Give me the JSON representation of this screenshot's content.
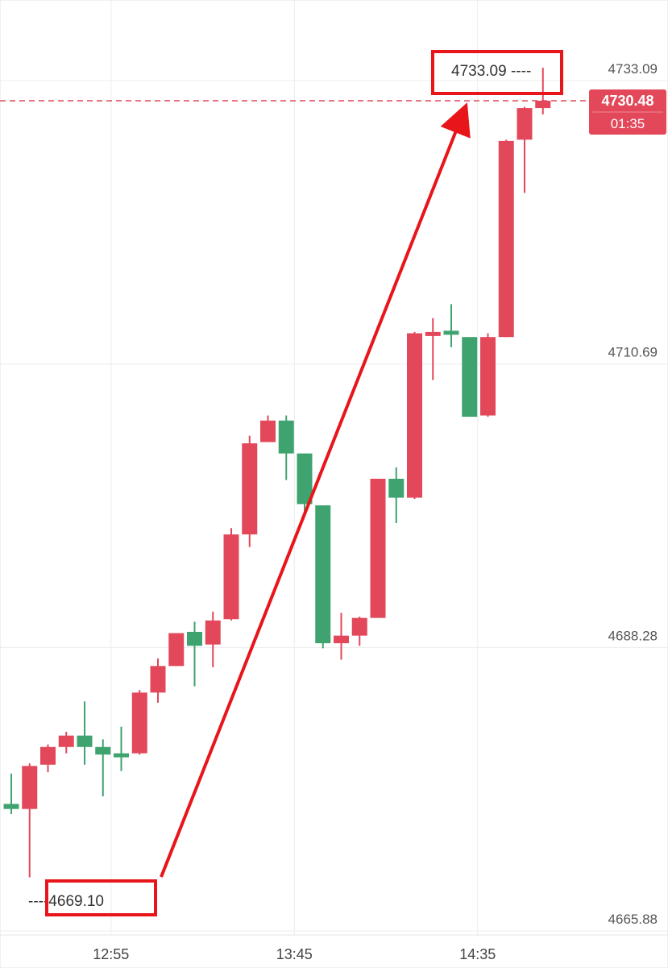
{
  "chart_data": {
    "type": "candlestick",
    "y_ticks": [
      4733.09,
      4710.69,
      4688.28,
      4665.88
    ],
    "y_tick_labels": [
      "4733.09",
      "4710.69",
      "4688.28",
      "4665.88"
    ],
    "ylim": [
      4665.88,
      4733.09
    ],
    "x_tick_labels": [
      {
        "label": "12:55",
        "index": 5
      },
      {
        "label": "13:45",
        "index": 15
      },
      {
        "label": "14:35",
        "index": 25
      }
    ],
    "candles": [
      {
        "o": 4674.9,
        "h": 4677.3,
        "l": 4674.1,
        "c": 4674.5
      },
      {
        "o": 4674.5,
        "h": 4678.1,
        "l": 4669.1,
        "c": 4677.9
      },
      {
        "o": 4678.0,
        "h": 4679.6,
        "l": 4677.4,
        "c": 4679.4
      },
      {
        "o": 4679.4,
        "h": 4680.6,
        "l": 4678.9,
        "c": 4680.3
      },
      {
        "o": 4680.3,
        "h": 4683.0,
        "l": 4678.0,
        "c": 4679.4
      },
      {
        "o": 4679.4,
        "h": 4680.0,
        "l": 4675.5,
        "c": 4678.8
      },
      {
        "o": 4678.9,
        "h": 4681.0,
        "l": 4677.5,
        "c": 4678.6
      },
      {
        "o": 4678.9,
        "h": 4683.9,
        "l": 4678.8,
        "c": 4683.7
      },
      {
        "o": 4683.7,
        "h": 4686.4,
        "l": 4682.9,
        "c": 4685.8
      },
      {
        "o": 4685.8,
        "h": 4688.4,
        "l": 4685.8,
        "c": 4688.4
      },
      {
        "o": 4688.5,
        "h": 4689.3,
        "l": 4684.2,
        "c": 4687.4
      },
      {
        "o": 4687.5,
        "h": 4690.1,
        "l": 4685.7,
        "c": 4689.4
      },
      {
        "o": 4689.5,
        "h": 4696.7,
        "l": 4689.4,
        "c": 4696.2
      },
      {
        "o": 4696.2,
        "h": 4704.0,
        "l": 4695.2,
        "c": 4703.4
      },
      {
        "o": 4703.5,
        "h": 4705.6,
        "l": 4703.5,
        "c": 4705.2
      },
      {
        "o": 4705.2,
        "h": 4705.6,
        "l": 4700.5,
        "c": 4702.6
      },
      {
        "o": 4702.6,
        "h": 4702.6,
        "l": 4698.0,
        "c": 4698.6
      },
      {
        "o": 4698.5,
        "h": 4698.5,
        "l": 4687.2,
        "c": 4687.6
      },
      {
        "o": 4687.6,
        "h": 4690.0,
        "l": 4686.3,
        "c": 4688.2
      },
      {
        "o": 4688.2,
        "h": 4689.7,
        "l": 4687.4,
        "c": 4689.6
      },
      {
        "o": 4689.6,
        "h": 4700.6,
        "l": 4689.6,
        "c": 4700.6
      },
      {
        "o": 4700.6,
        "h": 4701.5,
        "l": 4697.1,
        "c": 4699.1
      },
      {
        "o": 4699.1,
        "h": 4712.2,
        "l": 4699.0,
        "c": 4712.1
      },
      {
        "o": 4712.1,
        "h": 4713.3,
        "l": 4708.4,
        "c": 4712.2
      },
      {
        "o": 4712.3,
        "h": 4714.4,
        "l": 4711.0,
        "c": 4712.2
      },
      {
        "o": 4711.8,
        "h": 4711.8,
        "l": 4705.5,
        "c": 4705.5
      },
      {
        "o": 4705.6,
        "h": 4712.1,
        "l": 4705.5,
        "c": 4711.8
      },
      {
        "o": 4711.8,
        "h": 4727.4,
        "l": 4711.8,
        "c": 4727.3
      },
      {
        "o": 4727.4,
        "h": 4730.0,
        "l": 4723.2,
        "c": 4729.9
      },
      {
        "o": 4729.9,
        "h": 4733.09,
        "l": 4729.4,
        "c": 4730.48
      }
    ],
    "up_color": "#e2485a",
    "down_color": "#3fa36f",
    "current_price": {
      "value": 4730.48,
      "label": "4730.48",
      "timer": "01:35",
      "color": "#e2485a"
    },
    "annotations": [
      {
        "kind": "high",
        "label": "4733.09 ----",
        "value": 4733.09
      },
      {
        "kind": "low",
        "label": "----4669.10",
        "value": 4669.1
      }
    ],
    "arrow": {
      "from_value": 4669.1,
      "to_value": 4733.09,
      "color": "#e8151b"
    },
    "grid": true
  }
}
